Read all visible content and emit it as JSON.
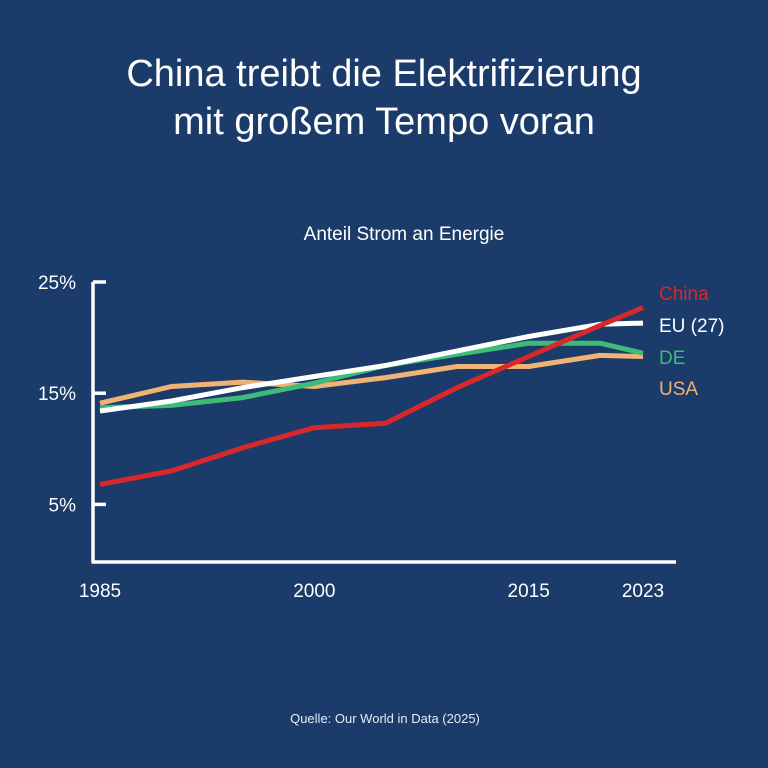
{
  "title": {
    "line1": "China treibt die Elektrifizierung",
    "line2": "mit großem Tempo voran"
  },
  "source": "Quelle: Our World in Data (2025)",
  "colors": {
    "background": "#1b3b6a",
    "axis": "#ffffff"
  },
  "chart_data": {
    "type": "line",
    "title": "Anteil Strom an Energie",
    "xlabel": "",
    "ylabel": "",
    "x": [
      1985,
      1990,
      1995,
      2000,
      2005,
      2010,
      2015,
      2020,
      2023
    ],
    "xlim": [
      1985,
      2023
    ],
    "ylim": [
      0,
      25
    ],
    "x_ticks": [
      1985,
      2000,
      2015,
      2023
    ],
    "x_tick_labels": [
      "1985",
      "2000",
      "2015",
      "2023"
    ],
    "y_ticks": [
      5,
      15,
      25
    ],
    "y_tick_labels": [
      "5%",
      "15%",
      "25%"
    ],
    "grid": false,
    "legend": "right (direct labels at line ends)",
    "series": [
      {
        "name": "China",
        "color": "#d8282b",
        "values": [
          6.8,
          8.0,
          10.1,
          11.9,
          12.3,
          15.5,
          18.3,
          21.1,
          22.7
        ]
      },
      {
        "name": "EU (27)",
        "color": "#ffffff",
        "values": [
          13.4,
          14.3,
          15.5,
          16.5,
          17.5,
          18.8,
          20.1,
          21.2,
          21.3
        ]
      },
      {
        "name": "DE",
        "color": "#3dbb77",
        "values": [
          13.7,
          13.9,
          14.6,
          15.9,
          17.5,
          18.5,
          19.5,
          19.5,
          18.6
        ]
      },
      {
        "name": "USA",
        "color": "#f0b374",
        "values": [
          14.1,
          15.6,
          16.0,
          15.6,
          16.4,
          17.4,
          17.4,
          18.4,
          18.3
        ]
      }
    ]
  }
}
